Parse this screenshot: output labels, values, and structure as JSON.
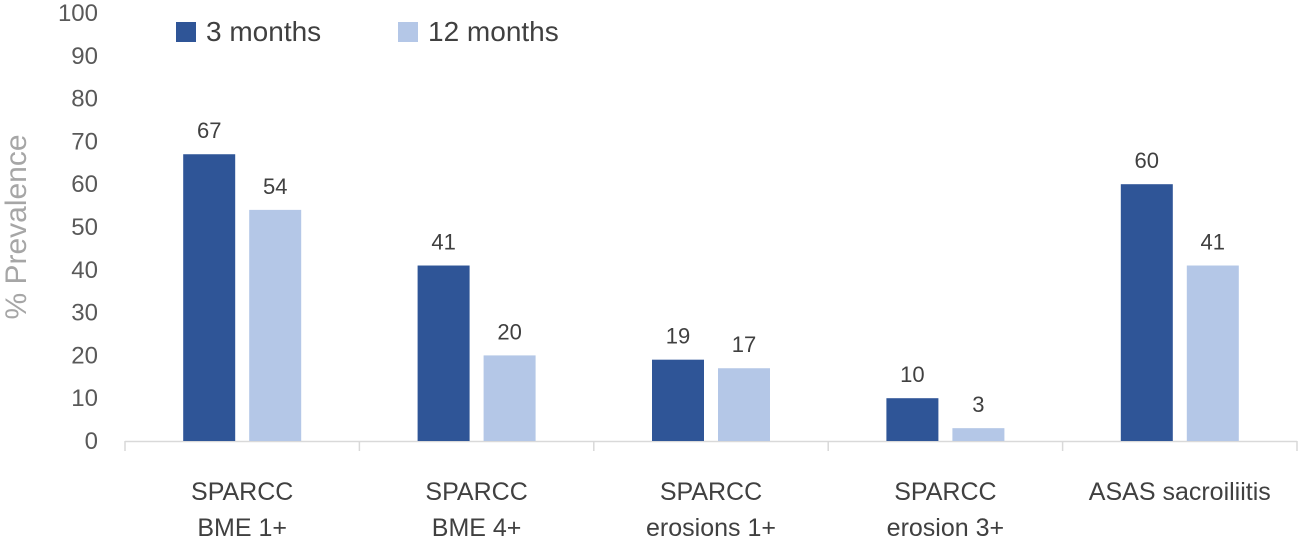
{
  "chart_data": {
    "type": "bar",
    "categories": [
      [
        "SPARCC",
        "BME 1+"
      ],
      [
        "SPARCC",
        "BME 4+"
      ],
      [
        "SPARCC",
        "erosions 1+"
      ],
      [
        "SPARCC",
        "erosion 3+"
      ],
      [
        "ASAS sacroiliitis"
      ]
    ],
    "series": [
      {
        "name": "3 months",
        "values": [
          67,
          41,
          19,
          10,
          60
        ],
        "color": "#2f5597"
      },
      {
        "name": "12 months",
        "values": [
          54,
          20,
          17,
          3,
          41
        ],
        "color": "#b4c7e7"
      }
    ],
    "ylabel": "% Prevalence",
    "xlabel": "",
    "ylim": [
      0,
      100
    ],
    "yticks": [
      0,
      10,
      20,
      30,
      40,
      50,
      60,
      70,
      80,
      90,
      100
    ],
    "grid": false,
    "legend": "top-left"
  }
}
